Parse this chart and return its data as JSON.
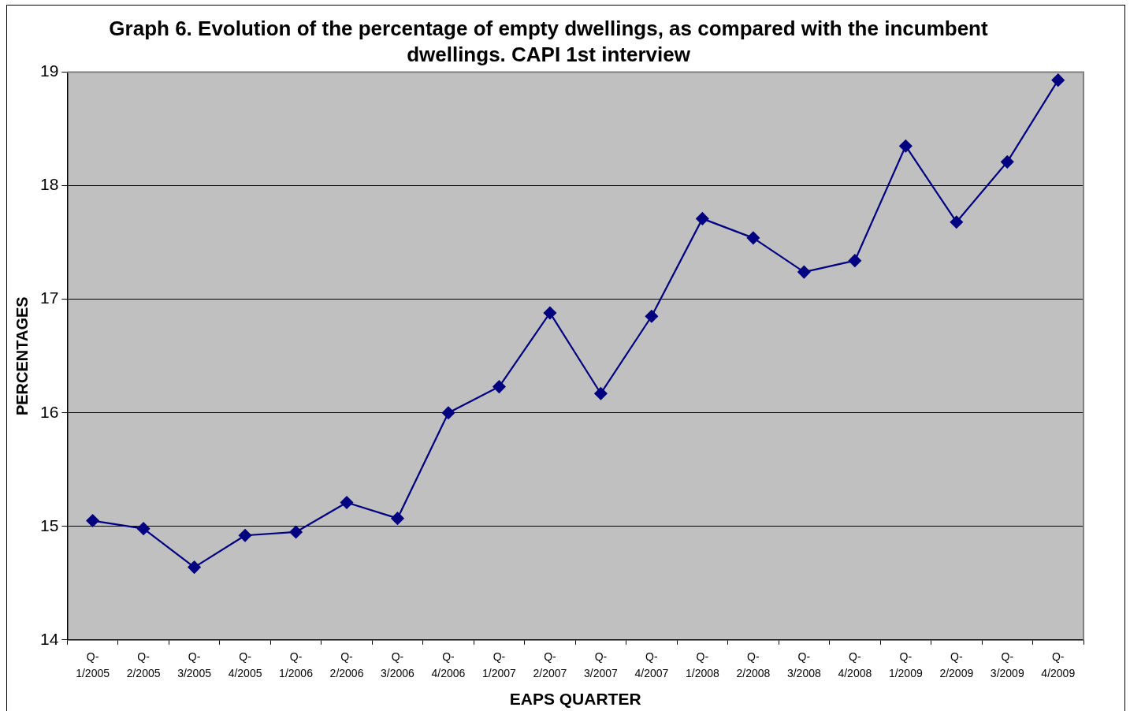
{
  "chart_data": {
    "type": "line",
    "title": "Graph 6. Evolution of the percentage of empty dwellings, as compared with the incumbent dwellings. CAPI 1st interview",
    "xlabel": "EAPS QUARTER",
    "ylabel": "PERCENTAGES",
    "categories": [
      "Q-1/2005",
      "Q-2/2005",
      "Q-3/2005",
      "Q-4/2005",
      "Q-1/2006",
      "Q-2/2006",
      "Q-3/2006",
      "Q-4/2006",
      "Q-1/2007",
      "Q-2/2007",
      "Q-3/2007",
      "Q-4/2007",
      "Q-1/2008",
      "Q-2/2008",
      "Q-3/2008",
      "Q-4/2008",
      "Q-1/2009",
      "Q-2/2009",
      "Q-3/2009",
      "Q-4/2009"
    ],
    "series": [
      {
        "color": "#000080",
        "values": [
          15.05,
          14.98,
          14.64,
          14.92,
          14.95,
          15.21,
          15.07,
          16.0,
          16.23,
          16.88,
          16.17,
          16.85,
          17.71,
          17.54,
          17.24,
          17.34,
          18.35,
          17.68,
          18.21,
          18.93
        ]
      }
    ],
    "ylim": [
      14,
      19
    ],
    "yticks": [
      14,
      15,
      16,
      17,
      18,
      19
    ],
    "grid": "y",
    "marker": "diamond",
    "line_style": "solid"
  }
}
